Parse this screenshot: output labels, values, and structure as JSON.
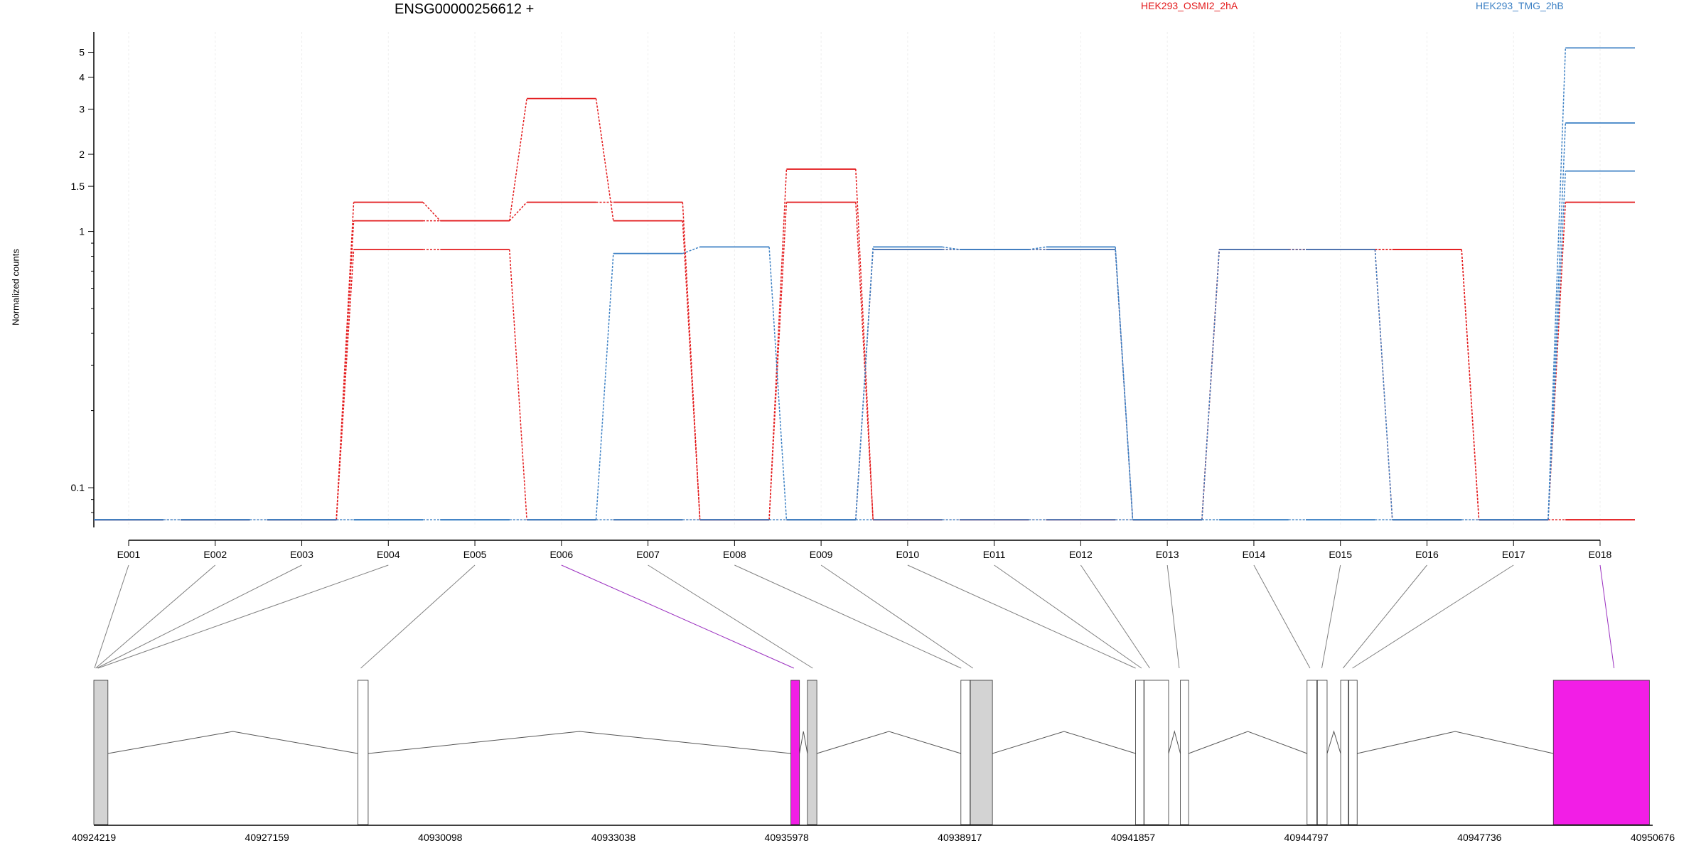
{
  "chart_data": {
    "type": "line",
    "title": "ENSG00000256612 +",
    "ylabel": "Normalized counts",
    "yscale": "log",
    "ylim": [
      0.07,
      6
    ],
    "yticks": [
      0.1,
      1,
      1.5,
      2,
      3,
      4,
      5
    ],
    "ytick_labels": [
      "0.1",
      "1",
      "1.5",
      "2",
      "3",
      "4",
      "5"
    ],
    "categories": [
      "E001",
      "E002",
      "E003",
      "E004",
      "E005",
      "E006",
      "E007",
      "E008",
      "E009",
      "E010",
      "E011",
      "E012",
      "E013",
      "E014",
      "E015",
      "E016",
      "E017",
      "E018"
    ],
    "legend": [
      {
        "name": "HEK293_OSMI2_2hA",
        "color": "#e31a1c"
      },
      {
        "name": "HEK293_TMG_2hB",
        "color": "#3c80c4"
      }
    ],
    "series": [
      {
        "group": "HEK293_OSMI2_2hA",
        "values": [
          0.075,
          0.075,
          0.075,
          1.3,
          1.1,
          1.3,
          1.3,
          0.075,
          1.3,
          0.075,
          0.075,
          0.075,
          0.075,
          0.85,
          0.85,
          0.85,
          0.075,
          0.075
        ]
      },
      {
        "group": "HEK293_OSMI2_2hA",
        "values": [
          0.075,
          0.075,
          0.075,
          1.1,
          1.1,
          3.3,
          1.1,
          0.075,
          1.75,
          0.075,
          0.075,
          0.075,
          0.075,
          0.85,
          0.85,
          0.85,
          0.075,
          1.3
        ]
      },
      {
        "group": "HEK293_OSMI2_2hA",
        "values": [
          0.075,
          0.075,
          0.075,
          0.85,
          0.85,
          0.075,
          0.075,
          0.075,
          0.075,
          0.85,
          0.85,
          0.85,
          0.075,
          0.85,
          0.85,
          0.075,
          0.075,
          0.075
        ]
      },
      {
        "group": "HEK293_TMG_2hB",
        "values": [
          0.075,
          0.075,
          0.075,
          0.075,
          0.075,
          0.075,
          0.82,
          0.87,
          0.075,
          0.87,
          0.85,
          0.87,
          0.075,
          0.85,
          0.85,
          0.075,
          0.075,
          5.2
        ]
      },
      {
        "group": "HEK293_TMG_2hB",
        "values": [
          0.075,
          0.075,
          0.075,
          0.075,
          0.075,
          0.075,
          0.075,
          0.075,
          0.075,
          0.85,
          0.85,
          0.85,
          0.075,
          0.075,
          0.075,
          0.075,
          0.075,
          2.65
        ]
      },
      {
        "group": "HEK293_TMG_2hB",
        "values": [
          0.075,
          0.075,
          0.075,
          0.075,
          0.075,
          0.075,
          0.075,
          0.075,
          0.075,
          0.075,
          0.075,
          0.075,
          0.075,
          0.075,
          0.075,
          0.075,
          0.075,
          1.72
        ]
      }
    ],
    "genomic_axis": {
      "ticks": [
        40924219,
        40927159,
        40930098,
        40933038,
        40935978,
        40938917,
        40941857,
        40944797,
        40947736,
        40950676
      ],
      "range": [
        40924219,
        40950676
      ]
    },
    "gene_model": {
      "exons": [
        {
          "start": 40924219,
          "end": 40924458,
          "fill": "#d3d3d3"
        },
        {
          "start": 40928700,
          "end": 40928875,
          "fill": "#ffffff"
        },
        {
          "start": 40936050,
          "end": 40936195,
          "fill": "#f21ee6"
        },
        {
          "start": 40936330,
          "end": 40936490,
          "fill": "#d3d3d3"
        },
        {
          "start": 40938935,
          "end": 40939090,
          "fill": "#ffffff"
        },
        {
          "start": 40939095,
          "end": 40939470,
          "fill": "#d3d3d3"
        },
        {
          "start": 40941900,
          "end": 40942040,
          "fill": "#ffffff"
        },
        {
          "start": 40942045,
          "end": 40942460,
          "fill": "#ffffff"
        },
        {
          "start": 40942660,
          "end": 40942800,
          "fill": "#ffffff"
        },
        {
          "start": 40944810,
          "end": 40944975,
          "fill": "#ffffff"
        },
        {
          "start": 40944985,
          "end": 40945150,
          "fill": "#ffffff"
        },
        {
          "start": 40945380,
          "end": 40945510,
          "fill": "#ffffff"
        },
        {
          "start": 40945520,
          "end": 40945660,
          "fill": "#ffffff"
        },
        {
          "start": 40948990,
          "end": 40950620,
          "fill": "#f21ee6"
        }
      ],
      "exon_bin_targets": [
        40924230,
        40924250,
        40924270,
        40924290,
        40928750,
        40936100,
        40936420,
        40938940,
        40939140,
        40941900,
        40942000,
        40942140,
        40942640,
        40944860,
        40945060,
        40945420,
        40945580,
        40950020
      ],
      "highlighted_bins": [
        "E006",
        "E018"
      ],
      "highlight_color": "#9b30c0",
      "link_color": "#808080"
    }
  }
}
